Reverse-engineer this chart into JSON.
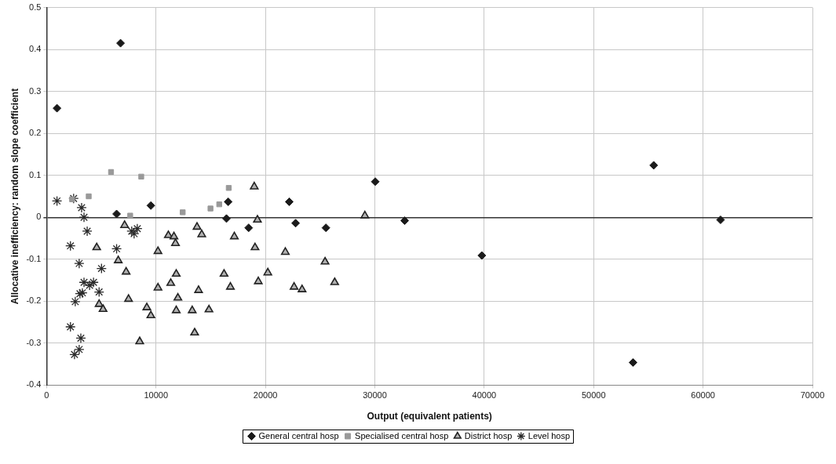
{
  "chart_data": {
    "type": "scatter",
    "xlabel": "Output (equivalent patients)",
    "ylabel": "Allocative inefficiency: random slope coefficient",
    "xlim": [
      0,
      70000
    ],
    "xticks": [
      0,
      10000,
      20000,
      30000,
      40000,
      50000,
      60000,
      70000
    ],
    "ylim": [
      -0.4,
      0.5
    ],
    "yticks": [
      -0.4,
      -0.3,
      -0.2,
      -0.1,
      0,
      0.1,
      0.2,
      0.3,
      0.4,
      0.5
    ],
    "grid": true,
    "legend": "bottom",
    "series": [
      {
        "name": "General central hosp",
        "color": "#1a1a1a",
        "marker": "diamond",
        "x": [
          950,
          6760,
          6400,
          9530,
          16600,
          16440,
          18470,
          22180,
          22760,
          25530,
          30040,
          32730,
          39780,
          53600,
          55490,
          61600
        ],
        "values": [
          0.26,
          0.415,
          0.008,
          0.028,
          0.037,
          -0.003,
          -0.025,
          0.037,
          -0.014,
          -0.025,
          0.085,
          -0.008,
          -0.091,
          -0.346,
          0.124,
          -0.006
        ]
      },
      {
        "name": "Specialised central hosp",
        "color": "#999999",
        "marker": "square",
        "x": [
          5890,
          8650,
          3850,
          2330,
          7640,
          12440,
          14980,
          15780,
          16650
        ],
        "values": [
          0.108,
          0.097,
          0.05,
          0.043,
          0.004,
          0.012,
          0.021,
          0.031,
          0.07
        ]
      },
      {
        "name": "District hosp",
        "color": "#b0b0b0",
        "marker": "triangle",
        "x": [
          7130,
          4580,
          6550,
          7270,
          7490,
          4800,
          5160,
          8510,
          9160,
          9530,
          10180,
          10180,
          11130,
          11640,
          11780,
          11850,
          11350,
          12000,
          11850,
          13310,
          14840,
          13530,
          13750,
          14180,
          13890,
          17160,
          16220,
          16800,
          18980,
          19270,
          19050,
          20220,
          19350,
          21820,
          25450,
          22620,
          23350,
          26330,
          29090
        ],
        "values": [
          -0.019,
          -0.072,
          -0.103,
          -0.13,
          -0.195,
          -0.207,
          -0.219,
          -0.296,
          -0.215,
          -0.234,
          -0.081,
          -0.168,
          -0.043,
          -0.046,
          -0.062,
          -0.135,
          -0.157,
          -0.192,
          -0.222,
          -0.222,
          -0.22,
          -0.275,
          -0.023,
          -0.041,
          -0.174,
          -0.046,
          -0.135,
          -0.166,
          0.073,
          -0.006,
          -0.072,
          -0.132,
          -0.153,
          -0.083,
          -0.106,
          -0.166,
          -0.172,
          -0.155,
          0.004
        ]
      },
      {
        "name": "Level hosp",
        "color": "#2a2a2a",
        "marker": "cross",
        "x": [
          950,
          2470,
          3200,
          3420,
          3710,
          2180,
          2980,
          5020,
          6400,
          7780,
          8290,
          8000,
          3420,
          4290,
          4800,
          3050,
          2620,
          3930,
          2180,
          3130,
          2550,
          2980,
          3270
        ],
        "values": [
          0.039,
          0.045,
          0.023,
          0.0,
          -0.033,
          -0.068,
          -0.11,
          -0.122,
          -0.075,
          -0.033,
          -0.027,
          -0.039,
          -0.155,
          -0.155,
          -0.178,
          -0.182,
          -0.201,
          -0.162,
          -0.261,
          -0.288,
          -0.327,
          -0.315,
          -0.18
        ]
      }
    ]
  }
}
